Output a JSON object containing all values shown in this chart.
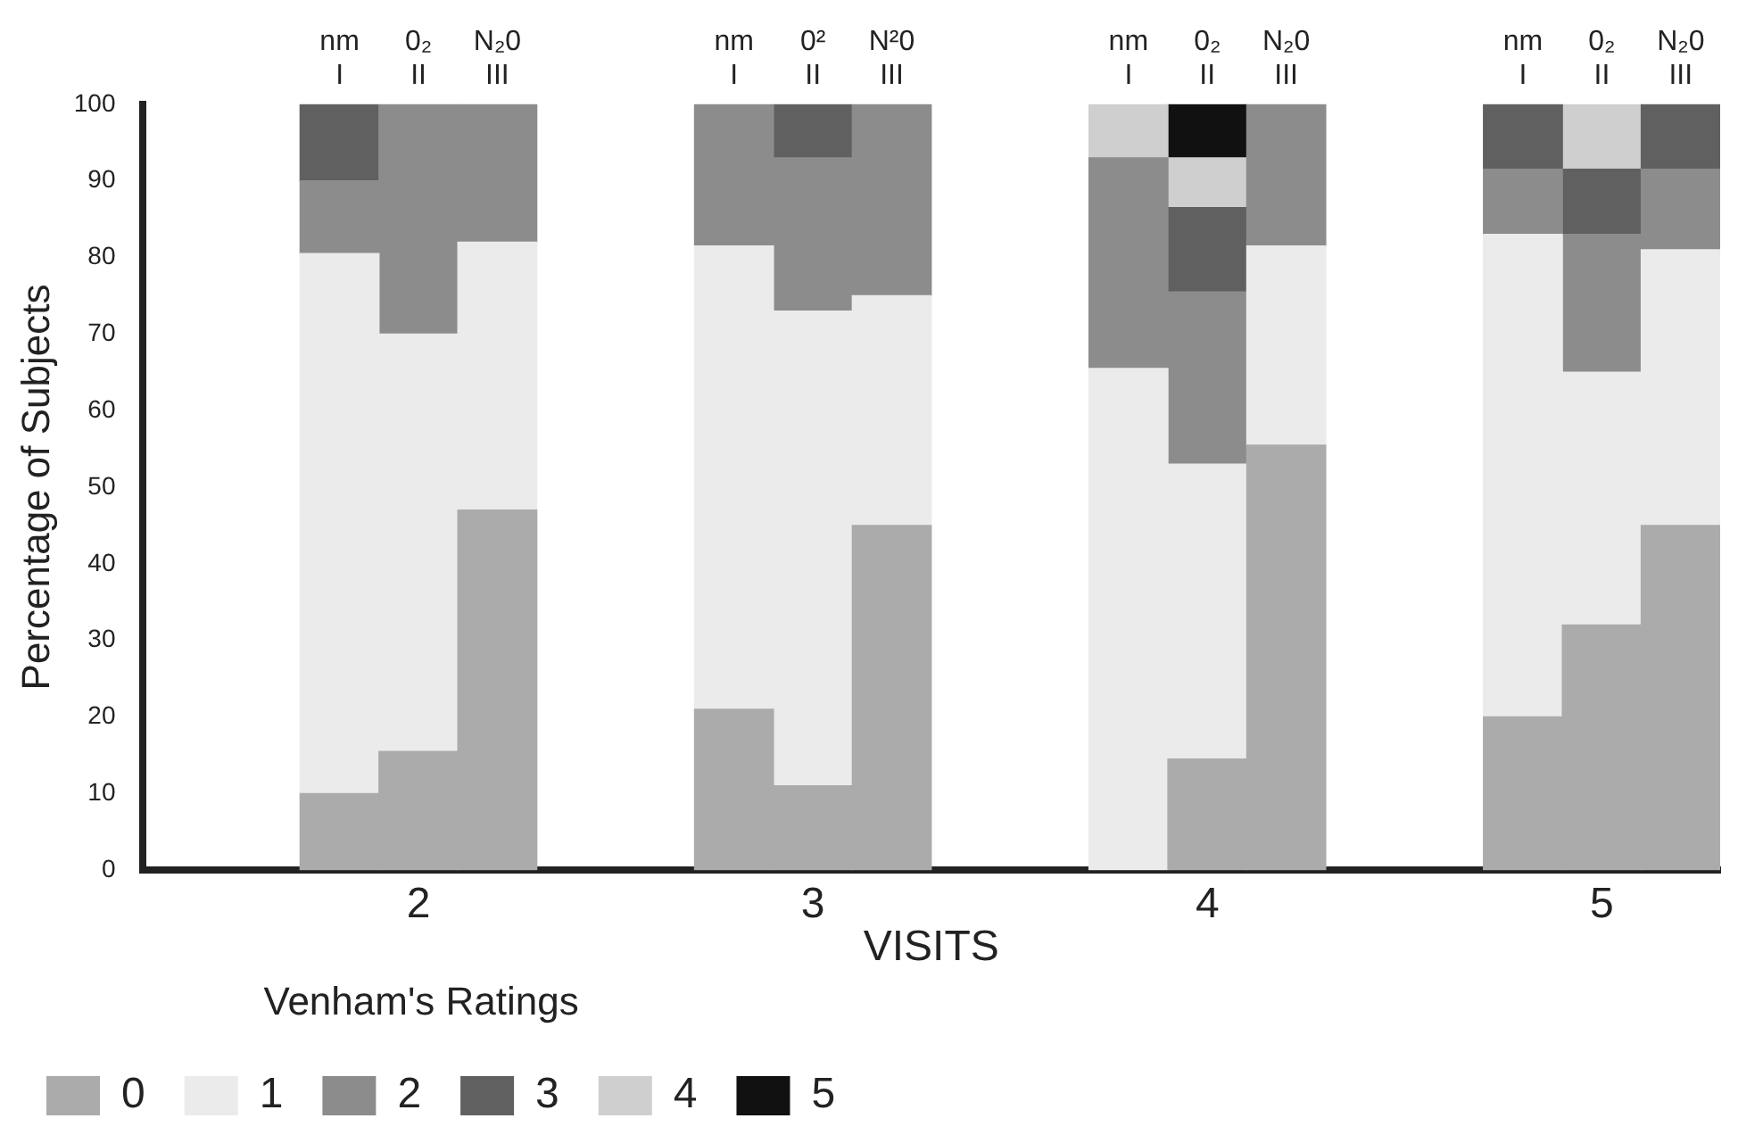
{
  "chart_data": {
    "type": "bar",
    "stacked": true,
    "xlabel": "VISITS",
    "ylabel": "Percentage of Subjects",
    "legend_title": "Venham's Ratings",
    "legend": "bottom",
    "categories": [
      null,
      null,
      "nm I",
      "0₂ II",
      "N₂0 III",
      null,
      null,
      "nm I",
      "0² II",
      "N²0 III",
      null,
      null,
      "nm I",
      "0₂ II",
      "N₂0 III",
      null,
      null,
      "nm I",
      "0₂ II",
      "N₂0 III"
    ],
    "annotations": [
      "2",
      "3",
      "4",
      "5"
    ],
    "ylim": [
      0,
      100
    ],
    "yticks": [
      0,
      10,
      20,
      30,
      40,
      50,
      60,
      70,
      80,
      90,
      100
    ],
    "grid": false,
    "series": [
      {
        "name": "0",
        "color": "#ababab",
        "values": [
          null,
          null,
          10,
          15.5,
          47,
          null,
          null,
          21,
          11,
          45,
          null,
          null,
          null,
          14.5,
          55.5,
          null,
          null,
          20,
          32,
          45
        ]
      },
      {
        "name": "1",
        "color": "#ebebeb",
        "values": [
          null,
          null,
          70.5,
          54.5,
          35,
          null,
          null,
          60.5,
          62,
          30,
          null,
          null,
          65.5,
          38.5,
          26,
          null,
          null,
          63,
          33,
          36
        ]
      },
      {
        "name": "2",
        "color": "#8c8c8c",
        "values": [
          null,
          null,
          9.5,
          30,
          18,
          null,
          null,
          18.5,
          20,
          25,
          null,
          null,
          27.5,
          22.5,
          18.5,
          null,
          null,
          8.5,
          18,
          10.5
        ]
      },
      {
        "name": "3",
        "color": "#606060",
        "values": [
          null,
          null,
          10,
          null,
          null,
          null,
          null,
          null,
          7,
          null,
          null,
          null,
          null,
          11,
          null,
          null,
          null,
          8.5,
          8.5,
          8.5
        ]
      },
      {
        "name": "4",
        "color": "#cfcfcf",
        "values": [
          null,
          null,
          null,
          null,
          null,
          null,
          null,
          null,
          null,
          null,
          null,
          null,
          7,
          6.5,
          null,
          null,
          null,
          null,
          8.5,
          null
        ]
      },
      {
        "name": "5",
        "color": "#111111",
        "values": [
          null,
          null,
          null,
          null,
          null,
          null,
          null,
          null,
          null,
          null,
          null,
          null,
          null,
          7,
          null,
          null,
          null,
          null,
          null,
          null
        ]
      }
    ]
  }
}
